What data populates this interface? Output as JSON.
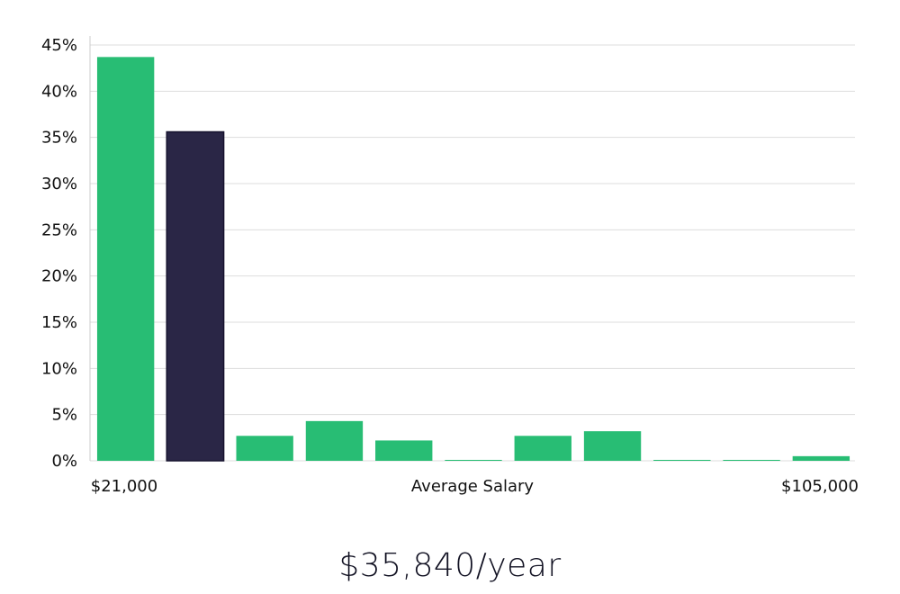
{
  "chart_data": {
    "type": "bar",
    "categories": [
      "1",
      "2",
      "3",
      "4",
      "5",
      "6",
      "7",
      "8",
      "9",
      "10",
      "11"
    ],
    "values": [
      43.7,
      35.6,
      2.7,
      4.3,
      2.2,
      0.1,
      2.7,
      3.2,
      0.1,
      0.1,
      0.5
    ],
    "highlight_index": 1,
    "x_range_labels": {
      "min": "$21,000",
      "max": "$105,000"
    },
    "xlabel": "Average Salary",
    "ylabel": "",
    "ylim": [
      0,
      45
    ],
    "yticks": [
      0,
      5,
      10,
      15,
      20,
      25,
      30,
      35,
      40,
      45
    ],
    "ytick_format": "%",
    "grid": true,
    "legend": "none",
    "colors": {
      "bar": "#28bd74",
      "highlight": "#2a2646",
      "highlight_stroke": "#16132e",
      "grid": "#dddddd",
      "axis": "#cccccc"
    }
  },
  "headline": {
    "salary": "$35,840/year"
  }
}
